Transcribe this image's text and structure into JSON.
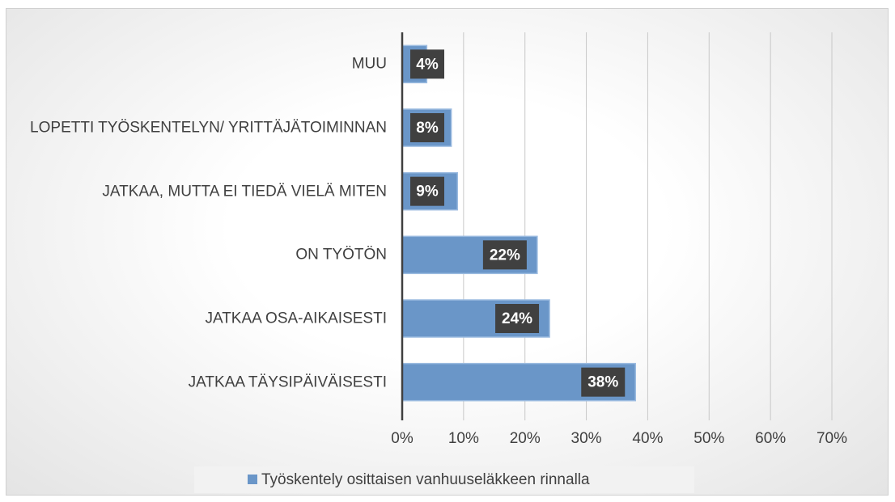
{
  "chart_data": {
    "type": "bar",
    "orientation": "horizontal",
    "categories": [
      "MUU",
      "LOPETTI TYÖSKENTELYN/ YRITTÄJÄTOIMINNAN",
      "JATKAA, MUTTA EI TIEDÄ VIELÄ MITEN",
      "ON TYÖTÖN",
      "JATKAA OSA-AIKAISESTI",
      "JATKAA TÄYSIPÄIVÄISESTI"
    ],
    "series": [
      {
        "name": "Työskentely osittaisen vanhuuseläkkeen rinnalla",
        "color": "#6a96c8",
        "values": [
          4,
          8,
          9,
          22,
          24,
          38
        ],
        "value_labels": [
          "4%",
          "8%",
          "9%",
          "22%",
          "24%",
          "38%"
        ]
      }
    ],
    "xlim": [
      0,
      70
    ],
    "xticks": [
      {
        "value": 0,
        "label": "0%"
      },
      {
        "value": 10,
        "label": "10%"
      },
      {
        "value": 20,
        "label": "20%"
      },
      {
        "value": 30,
        "label": "30%"
      },
      {
        "value": 40,
        "label": "40%"
      },
      {
        "value": 50,
        "label": "50%"
      },
      {
        "value": 60,
        "label": "60%"
      },
      {
        "value": 70,
        "label": "70%"
      }
    ],
    "grid": true,
    "legend": "bottom"
  }
}
